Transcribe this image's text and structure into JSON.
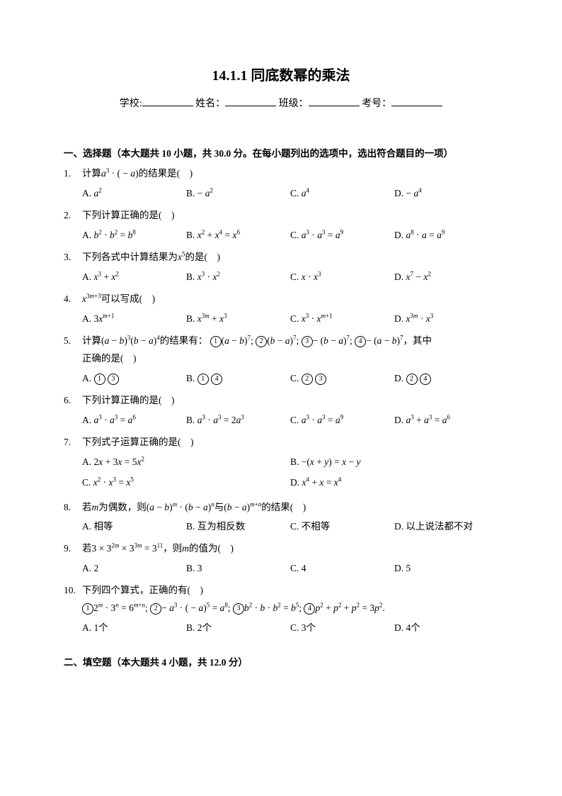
{
  "title": "14.1.1 同底数幂的乘法",
  "info": {
    "school_label": "学校:",
    "name_label": "姓名：",
    "class_label": "班级：",
    "examno_label": "考号："
  },
  "section1": "一、选择题（本大题共 10 小题，共 30.0 分。在每小题列出的选项中，选出符合题目的一项）",
  "section2": "二、填空题（本大题共 4 小题，共 12.0 分）",
  "q1": {
    "num": "1.",
    "stem_a": "计算",
    "stem_b": "的结果是(　)",
    "A": "A.",
    "B": "B.",
    "C": "C.",
    "D": "D."
  },
  "q2": {
    "num": "2.",
    "stem": "下列计算正确的是(　)",
    "A": "A.",
    "B": "B.",
    "C": "C.",
    "D": "D."
  },
  "q3": {
    "num": "3.",
    "stem_a": "下列各式中计算结果为",
    "stem_b": "的是(　)",
    "A": "A.",
    "B": "B.",
    "C": "C.",
    "D": "D."
  },
  "q4": {
    "num": "4.",
    "stem_b": "可以写成(　)",
    "A": "A.",
    "B": "B.",
    "C": "C.",
    "D": "D."
  },
  "q5": {
    "num": "5.",
    "stem_a": "计算",
    "stem_b": "的结果有：",
    "stem_c": "，其中",
    "stem_d": "正确的是(　)",
    "A": "A.",
    "B": "B.",
    "C": "C.",
    "D": "D."
  },
  "q6": {
    "num": "6.",
    "stem": "下列计算正确的是(　)",
    "A": "A.",
    "B": "B.",
    "C": "C.",
    "D": "D."
  },
  "q7": {
    "num": "7.",
    "stem": "下列式子运算正确的是(　)",
    "A": "A.",
    "B": "B.",
    "C": "C.",
    "D": "D."
  },
  "q8": {
    "num": "8.",
    "stem_a": "若",
    "stem_b": "为偶数，则",
    "stem_c": "与",
    "stem_d": "的结果(　)",
    "A": "A. 相等",
    "B": "B. 互为相反数",
    "C": "C. 不相等",
    "D": "D. 以上说法都不对"
  },
  "q9": {
    "num": "9.",
    "stem_a": "若",
    "stem_b": "，则",
    "stem_c": "的值为(　)",
    "A": "A. 2",
    "B": "B. 3",
    "C": "C. 4",
    "D": "D. 5"
  },
  "q10": {
    "num": "10.",
    "stem": "下列四个算式，正确的有(　)",
    "A": "A. 1个",
    "B": "B. 2个",
    "C": "C. 3个",
    "D": "D. 4个"
  }
}
